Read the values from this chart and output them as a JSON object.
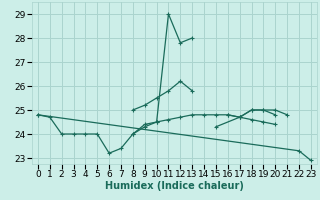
{
  "xlabel": "Humidex (Indice chaleur)",
  "background_color": "#cceee8",
  "grid_color": "#aad4ce",
  "line_color": "#1a6b5a",
  "ylim": [
    22.75,
    29.5
  ],
  "xlim": [
    -0.5,
    23.5
  ],
  "yticks": [
    23,
    24,
    25,
    26,
    27,
    28,
    29
  ],
  "xticks": [
    0,
    1,
    2,
    3,
    4,
    5,
    6,
    7,
    8,
    9,
    10,
    11,
    12,
    13,
    14,
    15,
    16,
    17,
    18,
    19,
    20,
    21,
    22,
    23
  ],
  "xtick_labels": [
    "0",
    "1",
    "2",
    "3",
    "4",
    "5",
    "6",
    "7",
    "8",
    "9",
    "10",
    "11",
    "12",
    "13",
    "14",
    "15",
    "16",
    "17",
    "18",
    "19",
    "20",
    "21",
    "22",
    "23"
  ],
  "label_fontsize": 7,
  "tick_fontsize": 6.5,
  "series": [
    {
      "x": [
        0,
        1,
        2,
        3,
        4,
        5,
        6,
        7,
        8,
        9,
        10,
        11,
        12,
        13
      ],
      "y": [
        24.8,
        24.7,
        24.0,
        24.0,
        24.0,
        24.0,
        23.2,
        23.4,
        24.0,
        24.4,
        24.5,
        29.0,
        27.8,
        28.0
      ]
    },
    {
      "x": [
        15,
        17,
        18,
        19,
        20
      ],
      "y": [
        24.3,
        24.7,
        25.0,
        25.0,
        24.8
      ]
    },
    {
      "x": [
        0,
        22,
        23
      ],
      "y": [
        24.8,
        23.3,
        22.9
      ]
    },
    {
      "x": [
        8,
        9,
        10,
        11,
        12,
        13,
        14,
        15,
        16,
        17,
        18,
        19,
        20
      ],
      "y": [
        24.0,
        24.3,
        24.5,
        24.6,
        24.7,
        24.8,
        24.8,
        24.8,
        24.8,
        24.7,
        24.6,
        24.5,
        24.4
      ]
    },
    {
      "x": [
        8,
        9,
        10,
        11,
        12,
        13
      ],
      "y": [
        25.0,
        25.2,
        25.5,
        25.8,
        26.2,
        25.8
      ]
    },
    {
      "x": [
        16,
        17,
        18,
        19,
        20,
        21
      ],
      "y": [
        24.8,
        24.7,
        25.0,
        25.0,
        25.0,
        24.8
      ]
    }
  ]
}
